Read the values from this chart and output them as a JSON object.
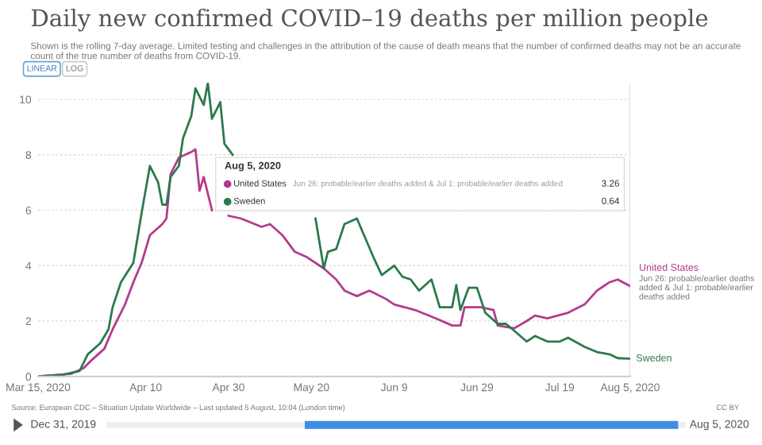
{
  "chart_data": {
    "type": "line",
    "title": "Daily new confirmed COVID–19 deaths per million people",
    "subtitle": "Shown is the rolling 7-day average. Limited testing and challenges in the attribution of the cause of death means that the number of confirmed deaths may not be an accurate count of the true number of deaths from COVID-19.",
    "xlim": [
      "2020-03-15",
      "2020-08-05"
    ],
    "xticks": [
      {
        "value": "2020-03-15",
        "label": "Mar 15, 2020"
      },
      {
        "value": "2020-04-10",
        "label": "Apr 10"
      },
      {
        "value": "2020-04-30",
        "label": "Apr 30"
      },
      {
        "value": "2020-05-20",
        "label": "May 20"
      },
      {
        "value": "2020-06-09",
        "label": "Jun 9"
      },
      {
        "value": "2020-06-29",
        "label": "Jun 29"
      },
      {
        "value": "2020-07-19",
        "label": "Jul 19"
      },
      {
        "value": "2020-08-05",
        "label": "Aug 5, 2020"
      }
    ],
    "ylim": [
      0,
      10.6
    ],
    "yticks": [
      0,
      2,
      4,
      6,
      8,
      10
    ],
    "grid": "y",
    "legend": "top",
    "ref_lines": [
      {
        "axis": "x",
        "value": "2020-08-05",
        "color": "#dddddd"
      }
    ],
    "series": [
      {
        "name": "United States",
        "color": "#b33b8c",
        "x": [
          "2020-03-15",
          "2020-03-23",
          "2020-03-26",
          "2020-03-28",
          "2020-03-31",
          "2020-04-02",
          "2020-04-05",
          "2020-04-07",
          "2020-04-09",
          "2020-04-11",
          "2020-04-14",
          "2020-04-15",
          "2020-04-16",
          "2020-04-18",
          "2020-04-21",
          "2020-04-22",
          "2020-04-23",
          "2020-04-24",
          "2020-04-26",
          "2020-04-28",
          "2020-04-30",
          "2020-05-03",
          "2020-05-08",
          "2020-05-10",
          "2020-05-13",
          "2020-05-16",
          "2020-05-19",
          "2020-05-23",
          "2020-05-26",
          "2020-05-28",
          "2020-05-31",
          "2020-06-03",
          "2020-06-07",
          "2020-06-09",
          "2020-06-14",
          "2020-06-19",
          "2020-06-23",
          "2020-06-25",
          "2020-06-26",
          "2020-06-30",
          "2020-07-03",
          "2020-07-04",
          "2020-07-08",
          "2020-07-11",
          "2020-07-13",
          "2020-07-16",
          "2020-07-21",
          "2020-07-25",
          "2020-07-28",
          "2020-07-31",
          "2020-08-02",
          "2020-08-05"
        ],
        "values": [
          0,
          0.1,
          0.3,
          0.6,
          1.0,
          1.7,
          2.6,
          3.4,
          4.1,
          5.1,
          5.5,
          5.7,
          7.3,
          7.9,
          8.1,
          8.2,
          6.7,
          7.2,
          6.0,
          null,
          5.8,
          5.7,
          5.4,
          5.5,
          5.1,
          4.5,
          4.3,
          3.9,
          3.5,
          3.1,
          2.9,
          3.1,
          2.8,
          2.6,
          2.4,
          2.1,
          1.84,
          1.84,
          2.5,
          2.5,
          2.4,
          1.84,
          1.74,
          2.0,
          2.2,
          2.1,
          2.3,
          2.6,
          3.1,
          3.4,
          3.5,
          3.26
        ]
      },
      {
        "name": "Sweden",
        "color": "#2b7a4b",
        "x": [
          "2020-03-15",
          "2020-03-21",
          "2020-03-25",
          "2020-03-27",
          "2020-03-30",
          "2020-04-01",
          "2020-04-02",
          "2020-04-04",
          "2020-04-07",
          "2020-04-08",
          "2020-04-09",
          "2020-04-11",
          "2020-04-13",
          "2020-04-14",
          "2020-04-15",
          "2020-04-16",
          "2020-04-18",
          "2020-04-19",
          "2020-04-21",
          "2020-04-22",
          "2020-04-24",
          "2020-04-25",
          "2020-04-26",
          "2020-04-28",
          "2020-04-29",
          "2020-05-01",
          "2020-05-10",
          "2020-05-21",
          "2020-05-23",
          "2020-05-24",
          "2020-05-26",
          "2020-05-28",
          "2020-05-31",
          "2020-06-04",
          "2020-06-06",
          "2020-06-09",
          "2020-06-11",
          "2020-06-13",
          "2020-06-15",
          "2020-06-18",
          "2020-06-20",
          "2020-06-23",
          "2020-06-24",
          "2020-06-25",
          "2020-06-27",
          "2020-06-29",
          "2020-07-01",
          "2020-07-04",
          "2020-07-06",
          "2020-07-08",
          "2020-07-11",
          "2020-07-13",
          "2020-07-16",
          "2020-07-19",
          "2020-07-21",
          "2020-07-25",
          "2020-07-28",
          "2020-07-31",
          "2020-08-02",
          "2020-08-05"
        ],
        "values": [
          0.0,
          0.06,
          0.2,
          0.8,
          1.2,
          1.7,
          2.5,
          3.4,
          4.1,
          5.0,
          5.9,
          7.6,
          7.0,
          6.2,
          6.2,
          7.2,
          7.6,
          8.6,
          9.4,
          10.4,
          9.8,
          10.6,
          9.3,
          9.9,
          8.4,
          8.0,
          null,
          5.7,
          3.9,
          4.5,
          4.6,
          5.5,
          5.7,
          4.3,
          3.66,
          4.0,
          3.6,
          3.5,
          3.1,
          3.5,
          2.5,
          2.5,
          3.3,
          2.4,
          3.2,
          3.2,
          2.3,
          1.9,
          1.9,
          1.65,
          1.26,
          1.46,
          1.26,
          1.26,
          1.4,
          1.07,
          0.88,
          0.8,
          0.66,
          0.64
        ]
      }
    ],
    "annotations": [
      "LINEAR",
      "LOG",
      "Aug 5, 2020",
      "Jun 26: probable/earlier deaths added & Jul 1: probable/earlier deaths added",
      "3.26",
      "0.64",
      {
        "text": "Jun 26: probable/earlier deaths added & Jul 1: probable/earlier deaths added",
        "x": "2020-08-05",
        "y": 3.26
      },
      "Source: European CDC – Situation Update Worldwide – Last updated 5 August, 10:04 (London time)",
      "CC BY",
      "Dec 31, 2019",
      "Aug 5, 2020"
    ]
  }
}
